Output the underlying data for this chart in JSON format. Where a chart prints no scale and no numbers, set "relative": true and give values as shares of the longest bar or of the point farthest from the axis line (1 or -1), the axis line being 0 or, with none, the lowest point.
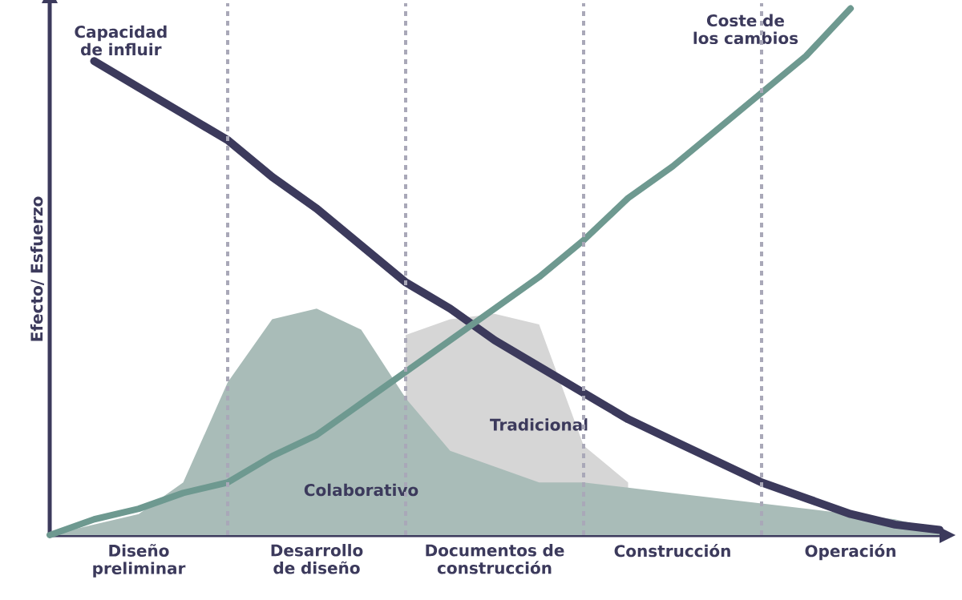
{
  "chart_data": {
    "type": "line",
    "relative": true,
    "ylabel": "Efecto/ Esfuerzo",
    "marker": "none",
    "grid": "x",
    "categories": [
      null,
      null,
      "Diseño preliminar",
      null,
      null,
      null,
      "Desarrollo de diseño",
      null,
      null,
      null,
      "Documentos de construcción",
      null,
      null,
      null,
      "Construcción",
      null,
      null,
      null,
      "Operación",
      null,
      null
    ],
    "series": [
      {
        "name": "Tradicional",
        "type": "area",
        "color": "#d6d6d6",
        "values": [
          null,
          null,
          null,
          null,
          null,
          null,
          null,
          null,
          0.38,
          0.41,
          0.42,
          0.4,
          0.17,
          0.1,
          null,
          null,
          null,
          null,
          null,
          null,
          null
        ]
      },
      {
        "name": "Colaborativo",
        "type": "area",
        "color": "#a9bcb8",
        "values": [
          0,
          0.02,
          0.04,
          0.1,
          0.29,
          0.41,
          0.43,
          0.39,
          0.26,
          0.16,
          0.13,
          0.1,
          0.1,
          0.09,
          0.08,
          0.07,
          0.06,
          0.05,
          0.04,
          0.03,
          0.01
        ]
      },
      {
        "name": "Capacidad de influir",
        "color": "#3c3a5c",
        "values": [
          null,
          0.9,
          0.85,
          0.8,
          0.75,
          0.68,
          0.62,
          0.55,
          0.48,
          0.43,
          0.37,
          0.32,
          0.27,
          0.22,
          0.18,
          0.14,
          0.1,
          0.07,
          0.04,
          0.02,
          0.01
        ]
      },
      {
        "name": "Coste de los cambios",
        "color": "#6e9990",
        "values": [
          0,
          0.03,
          0.05,
          0.08,
          0.1,
          0.15,
          0.19,
          0.25,
          0.31,
          0.37,
          0.43,
          0.49,
          0.56,
          0.64,
          0.7,
          0.77,
          0.84,
          0.91,
          1.0,
          null,
          null
        ]
      }
    ]
  }
}
